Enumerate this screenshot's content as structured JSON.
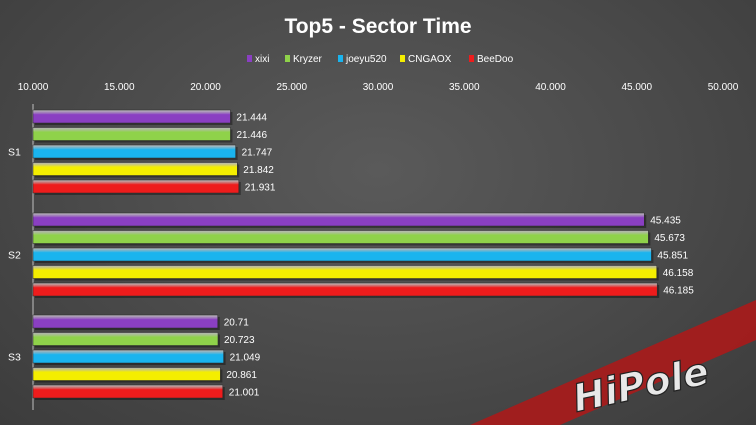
{
  "chart_data": {
    "type": "bar",
    "orientation": "horizontal",
    "title": "Top5 - Sector Time",
    "categories": [
      "S1",
      "S2",
      "S3"
    ],
    "series": [
      {
        "name": "xixi",
        "color": "#8a3fc2",
        "values": [
          21.444,
          45.435,
          20.71
        ],
        "labels": [
          "21.444",
          "45.435",
          "20.71"
        ]
      },
      {
        "name": "Kryzer",
        "color": "#8fd24a",
        "values": [
          21.446,
          45.673,
          20.723
        ],
        "labels": [
          "21.446",
          "45.673",
          "20.723"
        ]
      },
      {
        "name": "joeyu520",
        "color": "#1ab4ee",
        "values": [
          21.747,
          45.851,
          21.049
        ],
        "labels": [
          "21.747",
          "45.851",
          "21.049"
        ]
      },
      {
        "name": "CNGAOX",
        "color": "#f4ee00",
        "values": [
          21.842,
          46.158,
          20.861
        ],
        "labels": [
          "21.842",
          "46.158",
          "20.861"
        ]
      },
      {
        "name": "BeeDoo",
        "color": "#ee1c1c",
        "values": [
          21.931,
          46.185,
          21.001
        ],
        "labels": [
          "21.931",
          "46.185",
          "21.001"
        ]
      }
    ],
    "xlim": [
      10,
      50
    ],
    "xticks": [
      "10.000",
      "15.000",
      "20.000",
      "25.000",
      "30.000",
      "35.000",
      "40.000",
      "45.000",
      "50.000"
    ],
    "xlabel": "",
    "ylabel": "",
    "legend_position": "top",
    "grid": false
  },
  "watermark": {
    "text": "HiPole",
    "accent_color": "#cc1f1f"
  }
}
